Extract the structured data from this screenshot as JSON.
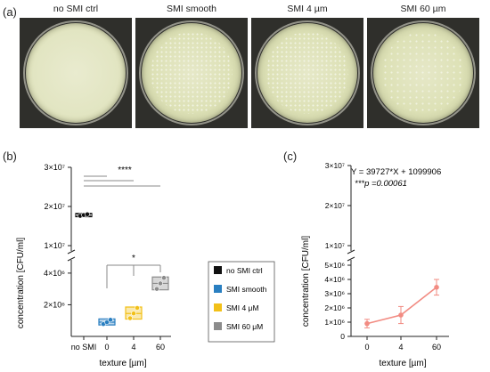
{
  "figure": {
    "panel_a": "(a)",
    "panel_b": "(b)",
    "panel_c": "(c)"
  },
  "photos": [
    {
      "label": "no SMI ctrl"
    },
    {
      "label": "SMI smooth"
    },
    {
      "label": "SMI 4 µm"
    },
    {
      "label": "SMI 60 µm"
    }
  ],
  "chart_data": [
    {
      "type": "scatter",
      "panel": "(b)",
      "ylabel": "concentration [CFU/ml]",
      "xlabel": "texture [µm]",
      "categories": [
        "no SMI",
        "0",
        "4",
        "60"
      ],
      "axis_break": true,
      "upper_ticks": [
        "3×10⁷",
        "2×10⁷",
        "1×10⁷"
      ],
      "lower_ticks": [
        "4×10⁶",
        "2×10⁶"
      ],
      "upper_ylim": [
        10000000,
        30000000
      ],
      "lower_ylim": [
        0,
        4500000
      ],
      "series": [
        {
          "name": "no SMI ctrl",
          "color": "#111111",
          "category": "no SMI",
          "values": [
            17600000,
            17800000,
            18000000
          ]
        },
        {
          "name": "SMI smooth",
          "color": "#2a7fc1",
          "category": "0",
          "values": [
            780000,
            900000,
            1050000
          ]
        },
        {
          "name": "SMI 4 μM",
          "color": "#f2c018",
          "category": "4",
          "values": [
            1150000,
            1450000,
            1800000
          ]
        },
        {
          "name": "SMI 60 μM",
          "color": "#8c8c8c",
          "category": "60",
          "values": [
            3000000,
            3350000,
            3700000
          ]
        }
      ],
      "legend_position": "right",
      "significance": [
        {
          "label": "****",
          "from": "no SMI",
          "to": [
            "0",
            "4",
            "60"
          ]
        },
        {
          "label": "*",
          "from": "0",
          "to": [
            "4",
            "60"
          ]
        }
      ]
    },
    {
      "type": "line",
      "panel": "(c)",
      "ylabel": "concentration [CFU/ml]",
      "xlabel": "texture [µm]",
      "equation": "Y = 39727*X + 1099906",
      "pvalue": "***p =0.00061",
      "categories": [
        "0",
        "4",
        "60"
      ],
      "axis_break": true,
      "upper_ticks": [
        "3×10⁷",
        "2×10⁷",
        "1×10⁷"
      ],
      "lower_ticks": [
        "5×10⁶",
        "4×10⁶",
        "3×10⁶",
        "2×10⁶",
        "1×10⁶",
        "0"
      ],
      "series": [
        {
          "color": "#f28b82",
          "values": [
            900000,
            1500000,
            3450000
          ],
          "errors": [
            300000,
            600000,
            550000
          ]
        }
      ]
    }
  ]
}
